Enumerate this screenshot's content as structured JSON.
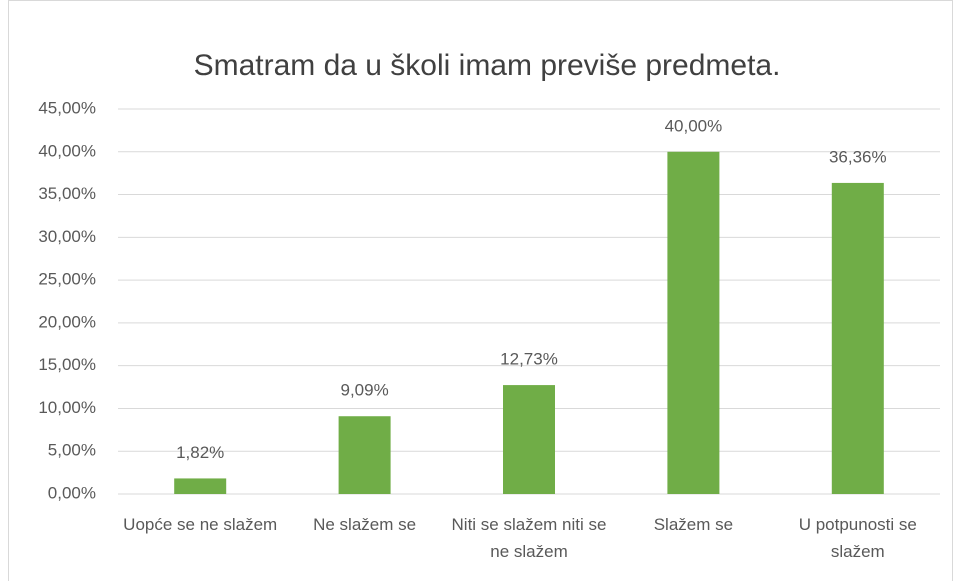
{
  "chart_data": {
    "type": "bar",
    "title": "Smatram da u školi imam previše predmeta.",
    "categories": [
      "Uopće se ne slažem",
      "Ne slažem se",
      "Niti se slažem niti se ne slažem",
      "Slažem se",
      "U potpunosti se slažem"
    ],
    "values": [
      1.82,
      9.09,
      12.73,
      40.0,
      36.36
    ],
    "value_labels": [
      "1,82%",
      "9,09%",
      "12,73%",
      "40,00%",
      "36,36%"
    ],
    "color": "#70ad47",
    "ylim": [
      0,
      45
    ],
    "yticks": [
      {
        "value": 0,
        "label": "0,00%"
      },
      {
        "value": 5,
        "label": "5,00%"
      },
      {
        "value": 10,
        "label": "10,00%"
      },
      {
        "value": 15,
        "label": "15,00%"
      },
      {
        "value": 20,
        "label": "20,00%"
      },
      {
        "value": 25,
        "label": "25,00%"
      },
      {
        "value": 30,
        "label": "30,00%"
      },
      {
        "value": 35,
        "label": "35,00%"
      },
      {
        "value": 40,
        "label": "40,00%"
      },
      {
        "value": 45,
        "label": "45,00%"
      }
    ],
    "grid": true
  }
}
